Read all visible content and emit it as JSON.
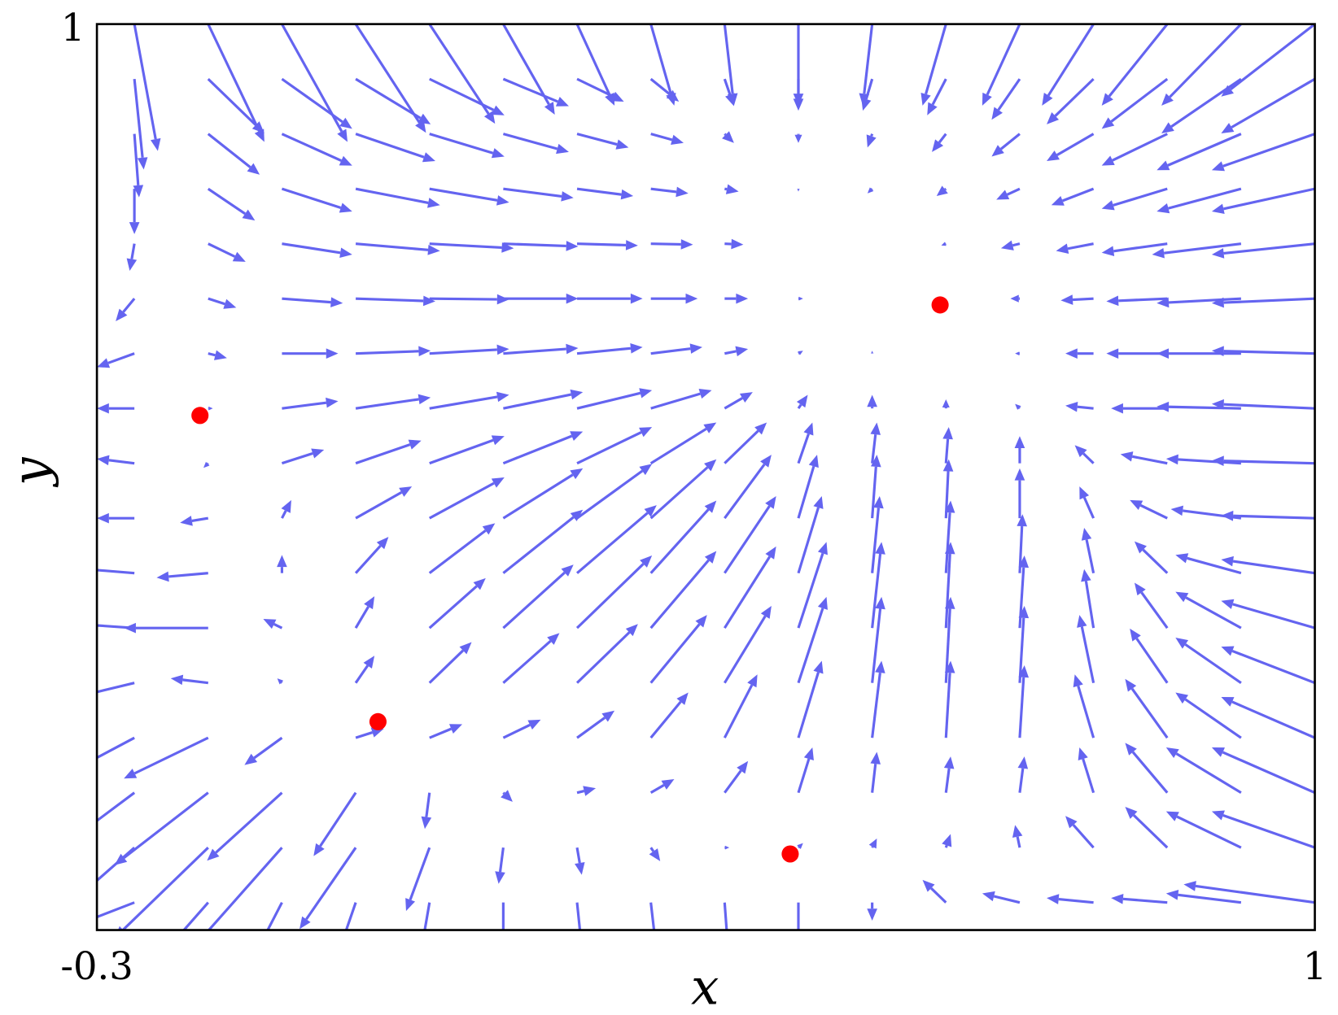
{
  "chart_data": {
    "type": "quiver",
    "x_label": "x",
    "y_label": "y",
    "xlim": [
      -0.3,
      1
    ],
    "ylim": [
      0,
      1
    ],
    "xticks": [
      -0.3,
      1
    ],
    "yticks": [
      1
    ],
    "quiver": {
      "color": "#6464f0",
      "x": [
        -0.26,
        -0.18125,
        -0.1025,
        -0.02375,
        0.055,
        0.13375,
        0.2125,
        0.29125,
        0.37,
        0.44875,
        0.5275,
        0.60625,
        0.685,
        0.76375,
        0.8425,
        0.92125,
        1.0
      ],
      "y": [
        1,
        0.9394,
        0.8788,
        0.8182,
        0.7576,
        0.697,
        0.6364,
        0.5758,
        0.5152,
        0.4546,
        0.394,
        0.3334,
        0.2728,
        0.2122,
        0.1516,
        0.091,
        0.0304
      ],
      "u": [
        [
          0.025,
          0.06,
          0.07,
          0.075,
          0.07,
          0.055,
          0.04,
          0.025,
          0.01,
          0,
          -0.01,
          -0.025,
          -0.04,
          -0.055,
          -0.07,
          -0.085,
          -0.1
        ],
        [
          0.01,
          0.06,
          0.075,
          0.08,
          0.08,
          0.07,
          0.05,
          0.03,
          0.01,
          0,
          -0.01,
          -0.02,
          -0.03,
          -0.05,
          -0.07,
          -0.085,
          -0.1
        ],
        [
          0.005,
          0.055,
          0.075,
          0.085,
          0.08,
          0.07,
          0.055,
          0.035,
          0.01,
          0,
          -0.005,
          -0.015,
          -0.03,
          -0.05,
          -0.07,
          -0.09,
          -0.11
        ],
        [
          0,
          0.05,
          0.075,
          0.09,
          0.085,
          0.075,
          0.06,
          0.04,
          0.015,
          0,
          -0.005,
          -0.01,
          -0.025,
          -0.045,
          -0.07,
          -0.09,
          -0.11
        ],
        [
          -0.005,
          0.04,
          0.075,
          0.09,
          0.09,
          0.08,
          0.065,
          0.045,
          0.02,
          0,
          0,
          -0.005,
          -0.02,
          -0.04,
          -0.07,
          -0.095,
          -0.11
        ],
        [
          -0.02,
          0.03,
          0.065,
          0.085,
          0.085,
          0.08,
          0.07,
          0.05,
          0.025,
          0.005,
          0,
          0,
          -0.01,
          -0.035,
          -0.065,
          -0.09,
          -0.11
        ],
        [
          -0.04,
          0.02,
          0.06,
          0.08,
          0.085,
          0.08,
          0.07,
          0.055,
          0.025,
          0.005,
          0,
          0,
          -0.005,
          -0.03,
          -0.065,
          -0.09,
          -0.11
        ],
        [
          -0.04,
          0.005,
          0.06,
          0.08,
          0.085,
          0.085,
          0.08,
          0.065,
          0.03,
          0.01,
          0,
          0,
          -0.005,
          -0.03,
          -0.06,
          -0.09,
          -0.11
        ],
        [
          -0.04,
          -0.005,
          0.045,
          0.07,
          0.08,
          0.085,
          0.08,
          0.07,
          0.045,
          0.015,
          0.005,
          0.003,
          0,
          -0.02,
          -0.05,
          -0.08,
          -0.11
        ],
        [
          -0.04,
          -0.03,
          0.01,
          0.06,
          0.08,
          0.085,
          0.08,
          0.07,
          0.05,
          0.02,
          0.005,
          0.003,
          0,
          -0.015,
          -0.04,
          -0.075,
          -0.1
        ],
        [
          -0.06,
          -0.055,
          0,
          0.035,
          0.07,
          0.085,
          0.085,
          0.07,
          0.055,
          0.025,
          0.008,
          0.005,
          0.003,
          -0.01,
          -0.035,
          -0.07,
          -0.1
        ],
        [
          -0.07,
          -0.09,
          -0.02,
          0.02,
          0.06,
          0.075,
          0.08,
          0.07,
          0.055,
          0.03,
          0.01,
          0.005,
          0.005,
          -0.01,
          -0.035,
          -0.07,
          -0.1
        ],
        [
          -0.08,
          -0.04,
          -0.005,
          0.02,
          0.045,
          0.06,
          0.065,
          0.06,
          0.05,
          0.03,
          0.01,
          0.005,
          0.005,
          -0.015,
          -0.04,
          -0.07,
          -0.1
        ],
        [
          -0.1,
          -0.09,
          -0.04,
          0.03,
          0.035,
          0.04,
          0.04,
          0.04,
          0.035,
          0.025,
          0.01,
          0.005,
          0.005,
          -0.02,
          -0.045,
          -0.07,
          -0.1
        ],
        [
          -0.11,
          -0.1,
          -0.08,
          -0.045,
          -0.005,
          0.01,
          0.02,
          0.025,
          0.025,
          0.015,
          0.005,
          0.005,
          0.005,
          -0.015,
          -0.045,
          -0.08,
          -0.11
        ],
        [
          -0.11,
          -0.1,
          -0.09,
          -0.06,
          -0.025,
          -0.005,
          0.005,
          0.01,
          0.005,
          0.005,
          0.005,
          0.005,
          -0.005,
          -0.03,
          -0.045,
          -0.08,
          -0.11
        ],
        [
          -0.1,
          -0.085,
          -0.06,
          -0.04,
          -0.02,
          0,
          0.01,
          0.01,
          0.005,
          0,
          0,
          -0.025,
          -0.04,
          -0.05,
          -0.06,
          -0.08,
          -0.14
        ]
      ],
      "v": [
        [
          -0.14,
          -0.13,
          -0.13,
          -0.12,
          -0.11,
          -0.1,
          -0.09,
          -0.09,
          -0.09,
          -0.09,
          -0.09,
          -0.09,
          -0.09,
          -0.09,
          -0.09,
          -0.09,
          -0.08
        ],
        [
          -0.1,
          -0.06,
          -0.055,
          -0.05,
          -0.04,
          -0.03,
          -0.025,
          -0.025,
          -0.03,
          -0.035,
          -0.035,
          -0.04,
          -0.045,
          -0.05,
          -0.055,
          -0.06,
          -0.06
        ],
        [
          -0.07,
          -0.045,
          -0.035,
          -0.03,
          -0.025,
          -0.02,
          -0.015,
          -0.01,
          -0.01,
          -0.01,
          -0.015,
          -0.02,
          -0.025,
          -0.03,
          -0.035,
          -0.04,
          -0.04
        ],
        [
          -0.05,
          -0.035,
          -0.025,
          -0.018,
          -0.015,
          -0.01,
          -0.008,
          -0.005,
          -0.003,
          -0.003,
          -0.005,
          -0.008,
          -0.012,
          -0.018,
          -0.022,
          -0.025,
          -0.025
        ],
        [
          -0.03,
          -0.02,
          -0.012,
          -0.008,
          -0.005,
          -0.003,
          -0.002,
          -0.001,
          -0.001,
          0,
          0,
          -0.002,
          -0.005,
          -0.008,
          -0.01,
          -0.012,
          -0.012
        ],
        [
          -0.025,
          -0.01,
          -0.005,
          -0.003,
          -0.001,
          0,
          0,
          0,
          0,
          0,
          0,
          0,
          0,
          -0.002,
          -0.003,
          -0.005,
          -0.005
        ],
        [
          -0.015,
          -0.005,
          0,
          0.003,
          0.005,
          0.006,
          0.007,
          0.007,
          0.005,
          0.003,
          0.003,
          0,
          0,
          0,
          0,
          0,
          0.003
        ],
        [
          0,
          0,
          0.008,
          0.012,
          0.015,
          0.018,
          0.02,
          0.02,
          0.018,
          0.015,
          0.015,
          0.01,
          0.005,
          0.003,
          0,
          0.002,
          0.005
        ],
        [
          0.005,
          -0.005,
          0.015,
          0.025,
          0.03,
          0.035,
          0.04,
          0.045,
          0.045,
          0.045,
          0.045,
          0.04,
          0.03,
          0.02,
          0.01,
          0.005,
          0.003
        ],
        [
          0,
          -0.005,
          0.02,
          0.035,
          0.045,
          0.055,
          0.06,
          0.065,
          0.07,
          0.07,
          0.07,
          0.065,
          0.055,
          0.035,
          0.02,
          0.01,
          0.003
        ],
        [
          0.005,
          -0.005,
          0.02,
          0.04,
          0.055,
          0.07,
          0.075,
          0.08,
          0.085,
          0.085,
          0.085,
          0.08,
          0.065,
          0.05,
          0.035,
          0.02,
          0.015
        ],
        [
          0.005,
          0,
          0.01,
          0.035,
          0.055,
          0.07,
          0.08,
          0.085,
          0.09,
          0.095,
          0.095,
          0.095,
          0.08,
          0.065,
          0.05,
          0.04,
          0.03
        ],
        [
          -0.02,
          0.005,
          0.005,
          0.03,
          0.045,
          0.055,
          0.065,
          0.075,
          0.085,
          0.095,
          0.095,
          0.095,
          0.085,
          0.075,
          0.06,
          0.05,
          0.04
        ],
        [
          -0.055,
          -0.045,
          -0.03,
          0.01,
          0.015,
          0.02,
          0.03,
          0.05,
          0.07,
          0.085,
          0.085,
          0.085,
          0.08,
          0.07,
          0.065,
          0.05,
          0.045
        ],
        [
          -0.085,
          -0.08,
          -0.075,
          -0.07,
          -0.04,
          -0.01,
          0.005,
          0.015,
          0.035,
          0.05,
          0.045,
          0.04,
          0.04,
          0.05,
          0.055,
          0.05,
          0.05
        ],
        [
          -0.1,
          -0.1,
          -0.105,
          -0.09,
          -0.07,
          -0.04,
          -0.03,
          -0.015,
          0,
          0.005,
          0.01,
          0.015,
          0.025,
          0.035,
          0.045,
          0.04,
          0.04
        ],
        [
          -0.04,
          -0.1,
          -0.12,
          -0.12,
          -0.12,
          -0.11,
          -0.1,
          -0.09,
          -0.07,
          -0.05,
          -0.02,
          0.025,
          0.01,
          0.005,
          0.005,
          0.01,
          0.02
        ]
      ]
    },
    "points": {
      "color": "#ff0000",
      "x": [
        -0.19,
        0.0,
        0.44,
        0.6
      ],
      "y": [
        0.568,
        0.23,
        0.084,
        0.69
      ]
    }
  }
}
